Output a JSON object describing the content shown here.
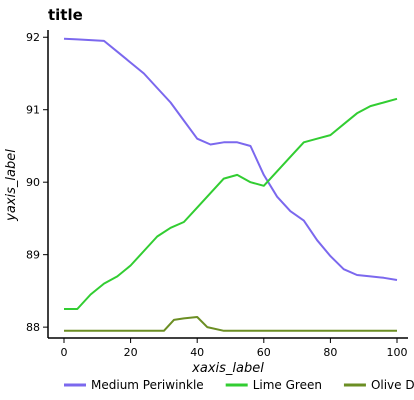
{
  "chart_data": {
    "type": "line",
    "title": "title",
    "xlabel": "xaxis_label",
    "ylabel": "yaxis_label",
    "xlim": [
      0,
      100
    ],
    "ylim": [
      87.85,
      92.1
    ],
    "xticks": [
      0,
      20,
      40,
      60,
      80,
      100
    ],
    "yticks": [
      88,
      89,
      90,
      91,
      92
    ],
    "grid": false,
    "legend_position": "bottom",
    "series": [
      {
        "name": "Medium Periwinkle",
        "color": "#7b68ee",
        "x": [
          0,
          4,
          8,
          12,
          16,
          20,
          24,
          28,
          32,
          36,
          40,
          44,
          48,
          52,
          56,
          60,
          64,
          68,
          72,
          76,
          80,
          84,
          88,
          92,
          96,
          100
        ],
        "y": [
          91.98,
          91.97,
          91.96,
          91.95,
          91.8,
          91.65,
          91.5,
          91.3,
          91.1,
          90.85,
          90.6,
          90.52,
          90.55,
          90.55,
          90.5,
          90.1,
          89.8,
          89.6,
          89.47,
          89.2,
          88.98,
          88.8,
          88.72,
          88.7,
          88.68,
          88.65
        ]
      },
      {
        "name": "Lime Green",
        "color": "#32cd32",
        "x": [
          0,
          4,
          8,
          12,
          16,
          20,
          24,
          28,
          32,
          36,
          40,
          44,
          48,
          52,
          56,
          60,
          64,
          68,
          72,
          76,
          80,
          84,
          88,
          92,
          96,
          100
        ],
        "y": [
          88.25,
          88.25,
          88.45,
          88.6,
          88.7,
          88.85,
          89.05,
          89.25,
          89.37,
          89.45,
          89.65,
          89.85,
          90.05,
          90.1,
          90.0,
          89.95,
          90.15,
          90.35,
          90.55,
          90.6,
          90.65,
          90.8,
          90.95,
          91.05,
          91.1,
          91.15
        ]
      },
      {
        "name": "Olive Drab",
        "color": "#6b8e23",
        "x": [
          0,
          10,
          20,
          30,
          33,
          36,
          40,
          43,
          48,
          60,
          80,
          100
        ],
        "y": [
          87.95,
          87.95,
          87.95,
          87.95,
          88.1,
          88.12,
          88.14,
          88.0,
          87.95,
          87.95,
          87.95,
          87.95
        ]
      }
    ]
  }
}
